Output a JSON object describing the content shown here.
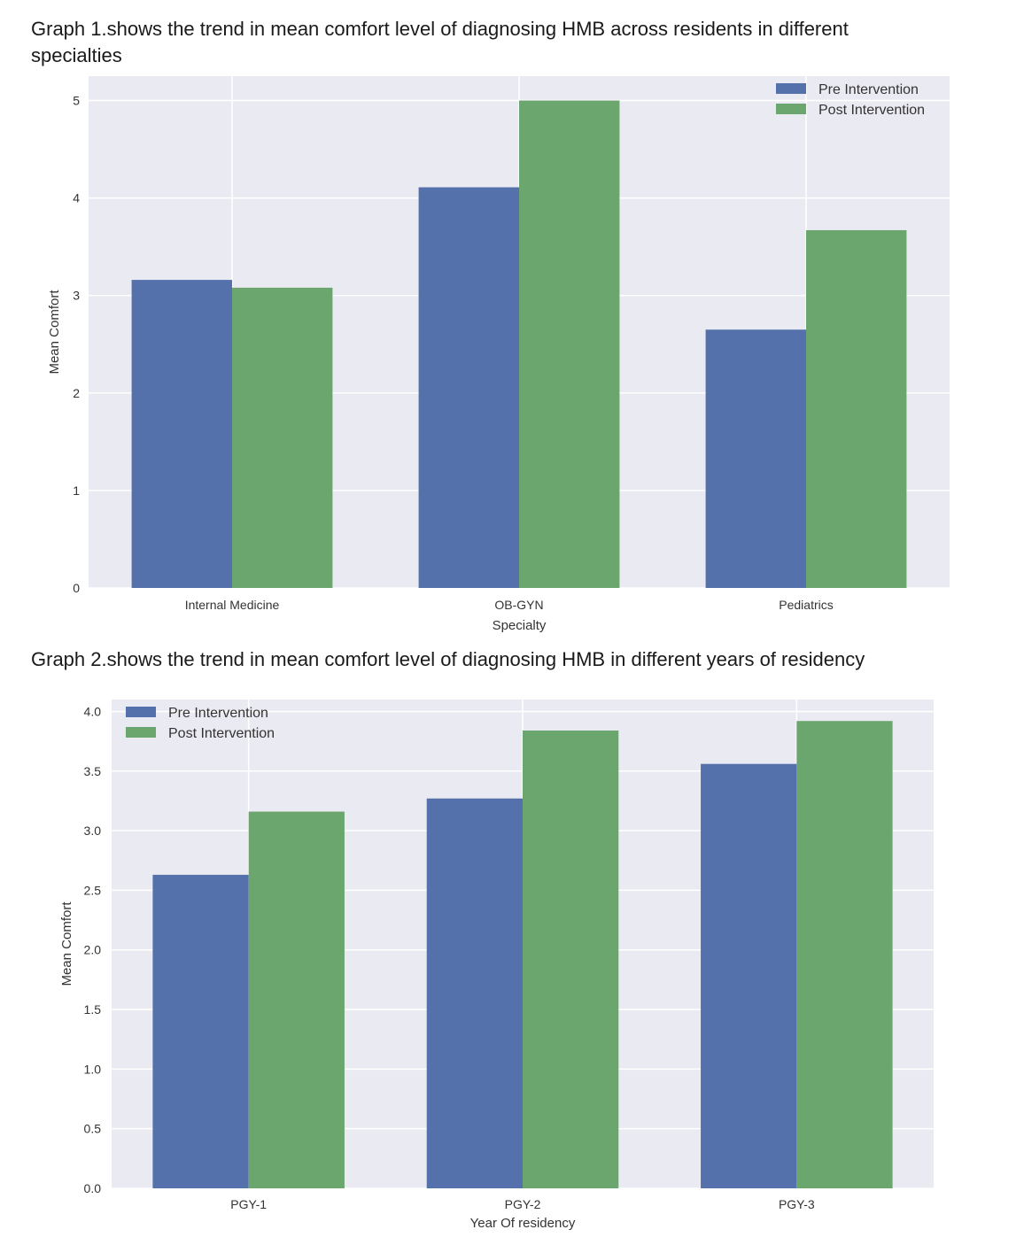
{
  "headings": {
    "graph1": "Graph 1.shows the trend in mean comfort level of diagnosing HMB across residents in different specialties",
    "graph2": "Graph 2.shows the trend in mean comfort level of diagnosing HMB in different years of residency"
  },
  "colors": {
    "pre": "#5471ab",
    "post": "#6aa66e",
    "plot_bg": "#eaeaf2",
    "grid": "#ffffff"
  },
  "chart_data": [
    {
      "type": "bar",
      "categories": [
        "Internal Medicine",
        "OB-GYN",
        "Pediatrics"
      ],
      "series": [
        {
          "name": "Pre Intervention",
          "values": [
            3.16,
            4.11,
            2.65
          ]
        },
        {
          "name": "Post Intervention",
          "values": [
            3.08,
            5.0,
            3.67
          ]
        }
      ],
      "title": "",
      "xlabel": "Specialty",
      "ylabel": "Mean Comfort",
      "ylim": [
        0,
        5.25
      ],
      "yticks": [
        0,
        1,
        2,
        3,
        4,
        5
      ],
      "ytick_labels": [
        "0",
        "1",
        "2",
        "3",
        "4",
        "5"
      ],
      "grid": true,
      "legend": "top-right"
    },
    {
      "type": "bar",
      "categories": [
        "PGY-1",
        "PGY-2",
        "PGY-3"
      ],
      "series": [
        {
          "name": "Pre Intervention",
          "values": [
            2.63,
            3.27,
            3.56
          ]
        },
        {
          "name": "Post Intervention",
          "values": [
            3.16,
            3.84,
            3.92
          ]
        }
      ],
      "title": "",
      "xlabel": "Year Of residency",
      "ylabel": "Mean Comfort",
      "ylim": [
        0,
        4.1
      ],
      "yticks": [
        0,
        0.5,
        1,
        1.5,
        2,
        2.5,
        3,
        3.5,
        4
      ],
      "ytick_labels": [
        "0.0",
        "0.5",
        "1.0",
        "1.5",
        "2.0",
        "2.5",
        "3.0",
        "3.5",
        "4.0"
      ],
      "grid": true,
      "legend": "top-left"
    }
  ]
}
